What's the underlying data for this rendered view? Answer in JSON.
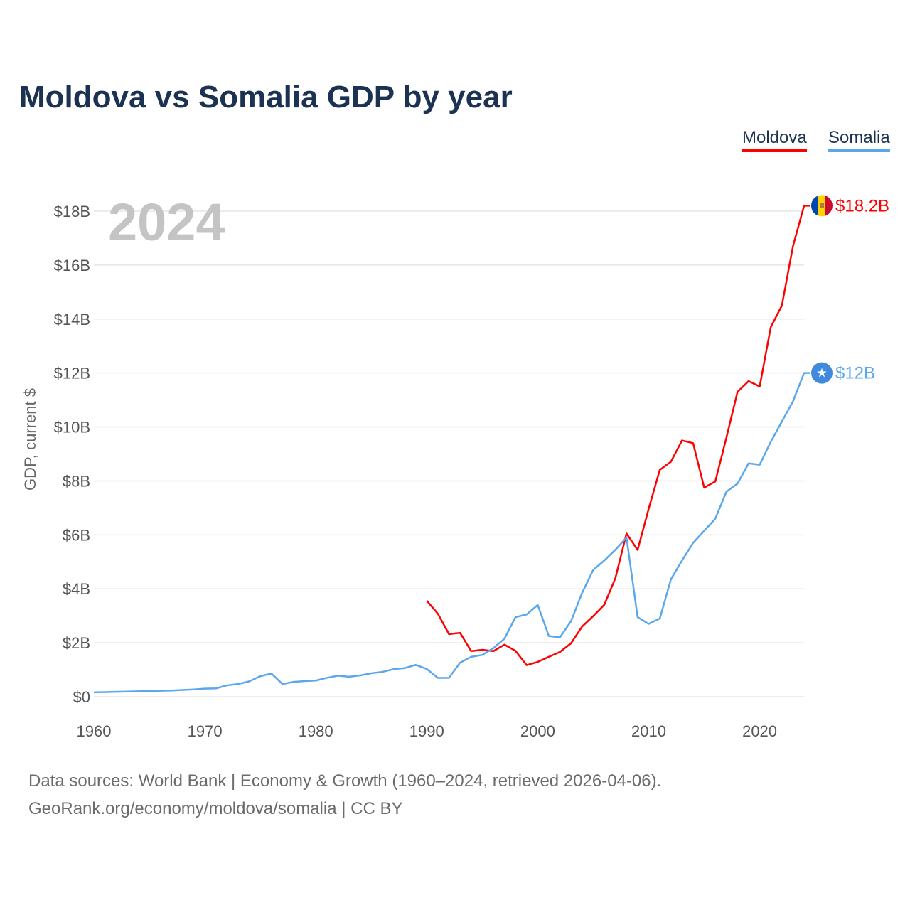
{
  "chart_data": {
    "type": "line",
    "title": "Moldova vs Somalia GDP by year",
    "xlabel": "",
    "ylabel": "GDP, current $",
    "xlim": [
      1960,
      2024
    ],
    "ylim": [
      0,
      18
    ],
    "x_ticks": [
      1960,
      1970,
      1980,
      1990,
      2000,
      2010,
      2020
    ],
    "y_ticks": [
      0,
      2,
      4,
      6,
      8,
      10,
      12,
      14,
      16,
      18
    ],
    "y_tick_labels": [
      "$0",
      "$2B",
      "$4B",
      "$6B",
      "$8B",
      "$10B",
      "$12B",
      "$14B",
      "$16B",
      "$18B"
    ],
    "year_label": "2024",
    "grid": true,
    "legend_position": "top-right",
    "series": [
      {
        "name": "Moldova",
        "color": "#ff0000",
        "end_label": "$18.2B",
        "flag": "moldova-flag",
        "start_year": 1990,
        "values": [
          3.56,
          3.08,
          2.32,
          2.37,
          1.69,
          1.74,
          1.69,
          1.93,
          1.7,
          1.17,
          1.29,
          1.48,
          1.66,
          1.98,
          2.6,
          2.99,
          3.41,
          4.4,
          6.05,
          5.44,
          6.97,
          8.41,
          8.71,
          9.5,
          9.4,
          7.75,
          7.98,
          9.6,
          11.3,
          11.7,
          11.5,
          13.7,
          14.5,
          16.7,
          18.2
        ]
      },
      {
        "name": "Somalia",
        "color": "#5ba7ec",
        "end_label": "$12B",
        "flag": "somalia-flag",
        "start_year": 1960,
        "values": [
          0.16,
          0.17,
          0.18,
          0.19,
          0.2,
          0.21,
          0.22,
          0.23,
          0.25,
          0.27,
          0.3,
          0.31,
          0.42,
          0.47,
          0.57,
          0.76,
          0.86,
          0.47,
          0.55,
          0.58,
          0.6,
          0.7,
          0.78,
          0.74,
          0.79,
          0.87,
          0.92,
          1.02,
          1.06,
          1.18,
          1.03,
          0.7,
          0.7,
          1.26,
          1.48,
          1.55,
          1.8,
          2.15,
          2.95,
          3.05,
          3.4,
          2.25,
          2.2,
          2.8,
          3.85,
          4.7,
          5.05,
          5.45,
          5.9,
          2.95,
          2.7,
          2.9,
          4.35,
          5.05,
          5.7,
          6.15,
          6.6,
          7.6,
          7.9,
          8.65,
          8.6,
          9.45,
          10.2,
          10.95,
          12.0
        ]
      }
    ]
  },
  "footer": {
    "line1": "Data sources: World Bank | Economy & Growth (1960–2024, retrieved 2026-04-06).",
    "line2": "GeoRank.org/economy/moldova/somalia | CC BY"
  }
}
